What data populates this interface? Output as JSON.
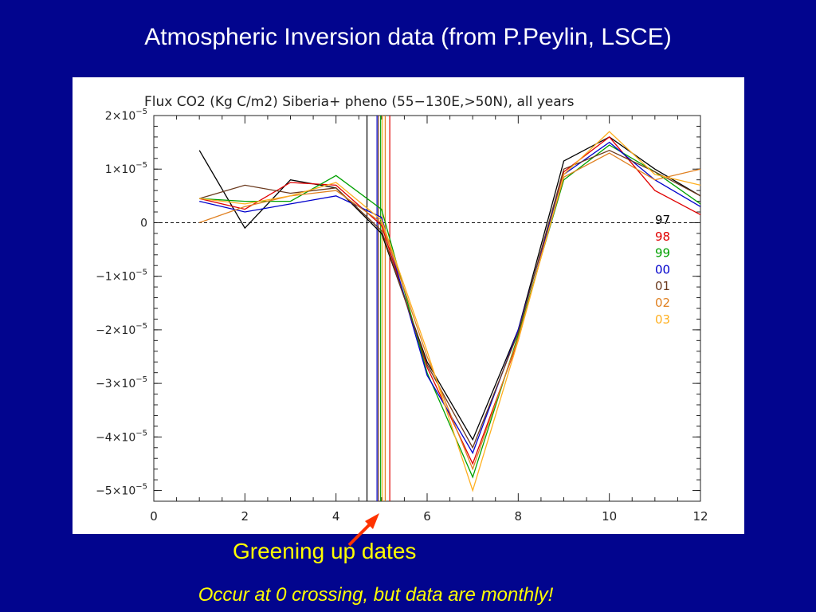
{
  "slide": {
    "title": "Atmospheric Inversion data (from P.Peylin, LSCE)",
    "caption": "Greening up dates",
    "subcaption": "Occur at 0 crossing, but data are monthly!",
    "background_color": "#02058e",
    "text_color": "#ffff00",
    "arrow_color": "#ff3300"
  },
  "chart_data": {
    "type": "line",
    "title": "Flux CO2 (Kg C/m2)   Siberia+ pheno (55−130E,>50N), all years",
    "xlabel": "",
    "ylabel": "",
    "xlim": [
      0,
      12
    ],
    "ylim": [
      -5.2e-05,
      2e-05
    ],
    "x_ticks": [
      0,
      2,
      4,
      6,
      8,
      10,
      12
    ],
    "x_tick_labels": [
      "0",
      "2",
      "4",
      "6",
      "8",
      "10",
      "12"
    ],
    "y_ticks": [
      {
        "value": 2e-05,
        "mant": "2×10",
        "exp": "−5"
      },
      {
        "value": 1e-05,
        "mant": "1×10",
        "exp": "−5"
      },
      {
        "value": 0,
        "mant": "0",
        "exp": ""
      },
      {
        "value": -1e-05,
        "mant": "−1×10",
        "exp": "−5"
      },
      {
        "value": -2e-05,
        "mant": "−2×10",
        "exp": "−5"
      },
      {
        "value": -3e-05,
        "mant": "−3×10",
        "exp": "−5"
      },
      {
        "value": -4e-05,
        "mant": "−4×10",
        "exp": "−5"
      },
      {
        "value": -5e-05,
        "mant": "−5×10",
        "exp": "−5"
      }
    ],
    "zero_line": "dashed",
    "legend_position": "right",
    "series": [
      {
        "name": "97",
        "color": "#000000",
        "x": [
          1,
          2,
          3,
          4,
          5,
          6,
          7,
          8,
          9,
          10,
          11,
          12
        ],
        "values": [
          1.35e-05,
          -1e-06,
          8e-06,
          6.5e-06,
          -2e-06,
          -2.6e-05,
          -4.05e-05,
          -2e-05,
          1.15e-05,
          1.6e-05,
          1e-05,
          5e-06
        ]
      },
      {
        "name": "98",
        "color": "#e00000",
        "x": [
          1,
          2,
          3,
          4,
          5,
          6,
          7,
          8,
          9,
          10,
          11,
          12
        ],
        "values": [
          4.5e-06,
          2.5e-06,
          7.5e-06,
          7e-06,
          -5e-07,
          -2.7e-05,
          -4.5e-05,
          -2.2e-05,
          9.5e-06,
          1.6e-05,
          6e-06,
          1.5e-06
        ]
      },
      {
        "name": "99",
        "color": "#00a000",
        "x": [
          1,
          2,
          3,
          4,
          5,
          6,
          7,
          8,
          9,
          10,
          11,
          12
        ],
        "values": [
          4.5e-06,
          4e-06,
          4e-06,
          8.8e-06,
          2.5e-06,
          -2.8e-05,
          -4.75e-05,
          -2.1e-05,
          8e-06,
          1.45e-05,
          9.5e-06,
          3.5e-06
        ]
      },
      {
        "name": "00",
        "color": "#0000cc",
        "x": [
          1,
          2,
          3,
          4,
          5,
          6,
          7,
          8,
          9,
          10,
          11,
          12
        ],
        "values": [
          4e-06,
          2e-06,
          3.5e-06,
          5e-06,
          1e-06,
          -2.85e-05,
          -4.3e-05,
          -2e-05,
          9e-06,
          1.5e-05,
          8e-06,
          3e-06
        ]
      },
      {
        "name": "01",
        "color": "#6b3a1e",
        "x": [
          1,
          2,
          3,
          4,
          5,
          6,
          7,
          8,
          9,
          10,
          11,
          12
        ],
        "values": [
          4.5e-06,
          7e-06,
          5.5e-06,
          6.5e-06,
          -1.5e-06,
          -2.65e-05,
          -4.2e-05,
          -2.05e-05,
          1e-05,
          1.35e-05,
          9.5e-06,
          5e-06
        ]
      },
      {
        "name": "02",
        "color": "#e08020",
        "x": [
          1,
          2,
          3,
          4,
          5,
          6,
          7,
          8,
          9,
          10,
          11,
          12
        ],
        "values": [
          0.0,
          3e-06,
          5e-06,
          6e-06,
          0.0,
          -2.5e-05,
          -4.6e-05,
          -2.15e-05,
          8.5e-06,
          1.3e-05,
          8e-06,
          1e-05
        ]
      },
      {
        "name": "03",
        "color": "#ffb020",
        "x": [
          1,
          2,
          3,
          4,
          5,
          6,
          7,
          8,
          9,
          10,
          11,
          12
        ],
        "values": [
          4.5e-06,
          3.5e-06,
          5e-06,
          7.5e-06,
          5e-07,
          -2.4e-05,
          -5e-05,
          -2.2e-05,
          9e-06,
          1.7e-05,
          9e-06,
          7e-06
        ]
      }
    ],
    "greening_up_dates": [
      {
        "name": "97",
        "color": "#000000",
        "x": 4.68
      },
      {
        "name": "98",
        "color": "#e00000",
        "x": 5.18
      },
      {
        "name": "99",
        "color": "#00a000",
        "x": 4.98
      },
      {
        "name": "00",
        "color": "#0000cc",
        "x": 4.9
      },
      {
        "name": "01",
        "color": "#6b3a1e",
        "x": 4.93
      },
      {
        "name": "02",
        "color": "#e08020",
        "x": 5.08
      },
      {
        "name": "03",
        "color": "#ffb020",
        "x": 5.02
      }
    ]
  }
}
